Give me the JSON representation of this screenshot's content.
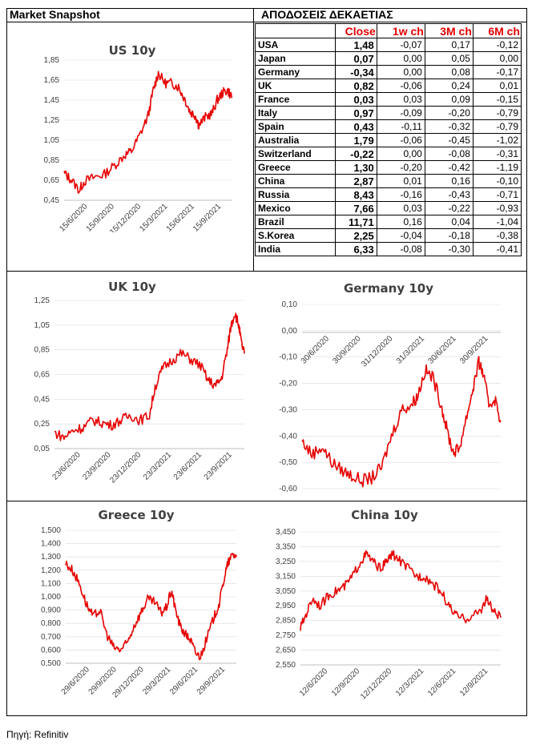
{
  "header": {
    "left": "Market Snapshot",
    "right": "ΑΠΟΔΟΣΕΙΣ ΔΕΚΑΕΤΙΑΣ"
  },
  "table": {
    "columns": [
      "",
      "Close",
      "1w ch",
      "3M ch",
      "6M ch"
    ],
    "rows": [
      [
        "USA",
        "1,48",
        "-0,07",
        "0,17",
        "-0,12"
      ],
      [
        "Japan",
        "0,07",
        "0,00",
        "0,05",
        "0,00"
      ],
      [
        "Germany",
        "-0,34",
        "0,00",
        "0,08",
        "-0,17"
      ],
      [
        "UK",
        "0,82",
        "-0,06",
        "0,24",
        "0,01"
      ],
      [
        "France",
        "0,03",
        "0,03",
        "0,09",
        "-0,15"
      ],
      [
        "Italy",
        "0,97",
        "-0,09",
        "-0,20",
        "-0,79"
      ],
      [
        "Spain",
        "0,43",
        "-0,11",
        "-0,32",
        "-0,79"
      ],
      [
        "Australia",
        "1,79",
        "-0,06",
        "-0,45",
        "-1,02"
      ],
      [
        "Switzerland",
        "-0,22",
        "0,00",
        "-0,08",
        "-0,31"
      ],
      [
        "Greece",
        "1,30",
        "-0,20",
        "-0,42",
        "-1,19"
      ],
      [
        "China",
        "2,87",
        "0,01",
        "0,16",
        "-0,10"
      ],
      [
        "Russia",
        "8,43",
        "-0,16",
        "-0,43",
        "-0,71"
      ],
      [
        "Mexico",
        "7,66",
        "0,03",
        "-0,22",
        "-0,93"
      ],
      [
        "Brazil",
        "11,71",
        "0,16",
        "0,04",
        "-1,04"
      ],
      [
        "S.Korea",
        "2,25",
        "-0,04",
        "-0,18",
        "-0,38"
      ],
      [
        "India",
        "6,33",
        "-0,08",
        "-0,30",
        "-0,41"
      ]
    ]
  },
  "source": "Πηγή: Refinitiv",
  "colors": {
    "line": "#e60000",
    "header_red": "#e00000",
    "text": "#404040"
  },
  "chart_data": [
    {
      "id": "us",
      "type": "line",
      "title": "US 10y",
      "ylim": [
        0.45,
        1.85
      ],
      "yticks": [
        "0,45",
        "0,65",
        "0,85",
        "1,05",
        "1,25",
        "1,45",
        "1,65",
        "1,85"
      ],
      "xticks": [
        "15/6/2020",
        "15/9/2020",
        "15/12/2020",
        "15/3/2021",
        "15/6/2021",
        "15/9/2021"
      ],
      "series": [
        {
          "values": [
            [
              0,
              0.72
            ],
            [
              0.04,
              0.66
            ],
            [
              0.09,
              0.55
            ],
            [
              0.12,
              0.64
            ],
            [
              0.18,
              0.68
            ],
            [
              0.24,
              0.71
            ],
            [
              0.3,
              0.8
            ],
            [
              0.36,
              0.9
            ],
            [
              0.4,
              0.94
            ],
            [
              0.45,
              1.1
            ],
            [
              0.5,
              1.3
            ],
            [
              0.53,
              1.55
            ],
            [
              0.56,
              1.72
            ],
            [
              0.6,
              1.62
            ],
            [
              0.64,
              1.62
            ],
            [
              0.68,
              1.58
            ],
            [
              0.72,
              1.45
            ],
            [
              0.75,
              1.33
            ],
            [
              0.78,
              1.3
            ],
            [
              0.8,
              1.2
            ],
            [
              0.84,
              1.28
            ],
            [
              0.88,
              1.32
            ],
            [
              0.91,
              1.45
            ],
            [
              0.94,
              1.52
            ],
            [
              0.97,
              1.55
            ],
            [
              1.0,
              1.48
            ]
          ]
        }
      ]
    },
    {
      "id": "uk",
      "type": "line",
      "title": "UK 10y",
      "ylim": [
        0.05,
        1.25
      ],
      "yticks": [
        "0,05",
        "0,25",
        "0,45",
        "0,65",
        "0,85",
        "1,05",
        "1,25"
      ],
      "xticks": [
        "23/6/2020",
        "23/9/2020",
        "23/12/2020",
        "23/3/2021",
        "23/6/2021",
        "23/9/2021"
      ],
      "series": [
        {
          "values": [
            [
              0,
              0.18
            ],
            [
              0.05,
              0.14
            ],
            [
              0.1,
              0.2
            ],
            [
              0.15,
              0.22
            ],
            [
              0.2,
              0.28
            ],
            [
              0.25,
              0.26
            ],
            [
              0.3,
              0.24
            ],
            [
              0.35,
              0.28
            ],
            [
              0.4,
              0.32
            ],
            [
              0.45,
              0.28
            ],
            [
              0.5,
              0.32
            ],
            [
              0.53,
              0.55
            ],
            [
              0.57,
              0.7
            ],
            [
              0.62,
              0.77
            ],
            [
              0.67,
              0.82
            ],
            [
              0.72,
              0.77
            ],
            [
              0.77,
              0.72
            ],
            [
              0.81,
              0.6
            ],
            [
              0.85,
              0.56
            ],
            [
              0.88,
              0.62
            ],
            [
              0.91,
              0.85
            ],
            [
              0.93,
              1.05
            ],
            [
              0.95,
              1.15
            ],
            [
              0.97,
              1.05
            ],
            [
              0.985,
              0.9
            ],
            [
              1.0,
              0.82
            ]
          ]
        }
      ]
    },
    {
      "id": "de",
      "type": "line",
      "title": "Germany 10y",
      "ylim": [
        -0.6,
        0.1
      ],
      "yticks": [
        "-0,60",
        "-0,50",
        "-0,40",
        "-0,30",
        "-0,20",
        "-0,10",
        "0,00",
        "0,10"
      ],
      "xticks": [
        "30/6/2020",
        "30/9/2020",
        "31/12/2020",
        "31/3/2021",
        "30/6/2021",
        "30/9/2021"
      ],
      "series": [
        {
          "values": [
            [
              0,
              -0.42
            ],
            [
              0.05,
              -0.47
            ],
            [
              0.1,
              -0.44
            ],
            [
              0.15,
              -0.5
            ],
            [
              0.2,
              -0.53
            ],
            [
              0.25,
              -0.55
            ],
            [
              0.3,
              -0.57
            ],
            [
              0.35,
              -0.56
            ],
            [
              0.4,
              -0.52
            ],
            [
              0.45,
              -0.4
            ],
            [
              0.5,
              -0.3
            ],
            [
              0.55,
              -0.28
            ],
            [
              0.58,
              -0.25
            ],
            [
              0.62,
              -0.15
            ],
            [
              0.66,
              -0.18
            ],
            [
              0.7,
              -0.28
            ],
            [
              0.73,
              -0.38
            ],
            [
              0.76,
              -0.46
            ],
            [
              0.79,
              -0.45
            ],
            [
              0.83,
              -0.32
            ],
            [
              0.86,
              -0.22
            ],
            [
              0.89,
              -0.12
            ],
            [
              0.91,
              -0.16
            ],
            [
              0.94,
              -0.28
            ],
            [
              0.97,
              -0.26
            ],
            [
              1.0,
              -0.34
            ]
          ]
        }
      ]
    },
    {
      "id": "gr",
      "type": "line",
      "title": "Greece 10y",
      "ylim": [
        0.5,
        1.5
      ],
      "yticks": [
        "0,500",
        "0,600",
        "0,700",
        "0,800",
        "0,900",
        "1,000",
        "1,100",
        "1,200",
        "1,300",
        "1,400",
        "1,500"
      ],
      "xticks": [
        "29/6/2020",
        "29/9/2020",
        "29/12/2020",
        "29/3/2021",
        "29/6/2021",
        "29/9/2021"
      ],
      "series": [
        {
          "values": [
            [
              0,
              1.25
            ],
            [
              0.04,
              1.2
            ],
            [
              0.08,
              1.1
            ],
            [
              0.12,
              0.95
            ],
            [
              0.16,
              0.85
            ],
            [
              0.2,
              0.9
            ],
            [
              0.24,
              0.72
            ],
            [
              0.28,
              0.62
            ],
            [
              0.32,
              0.6
            ],
            [
              0.36,
              0.65
            ],
            [
              0.4,
              0.78
            ],
            [
              0.44,
              0.88
            ],
            [
              0.48,
              0.98
            ],
            [
              0.52,
              0.96
            ],
            [
              0.56,
              0.88
            ],
            [
              0.59,
              0.92
            ],
            [
              0.62,
              1.05
            ],
            [
              0.64,
              0.92
            ],
            [
              0.67,
              0.78
            ],
            [
              0.7,
              0.72
            ],
            [
              0.73,
              0.68
            ],
            [
              0.76,
              0.58
            ],
            [
              0.79,
              0.55
            ],
            [
              0.83,
              0.7
            ],
            [
              0.87,
              0.85
            ],
            [
              0.9,
              0.95
            ],
            [
              0.93,
              1.15
            ],
            [
              0.95,
              1.25
            ],
            [
              0.98,
              1.32
            ],
            [
              1.0,
              1.3
            ]
          ]
        }
      ]
    },
    {
      "id": "cn",
      "type": "line",
      "title": "China 10y",
      "ylim": [
        2.55,
        3.45
      ],
      "yticks": [
        "2,550",
        "2,650",
        "2,750",
        "2,850",
        "2,950",
        "3,050",
        "3,150",
        "3,250",
        "3,350",
        "3,450"
      ],
      "xticks": [
        "12/6/2020",
        "12/9/2020",
        "12/12/2020",
        "12/3/2021",
        "12/6/2021",
        "12/9/2021"
      ],
      "series": [
        {
          "values": [
            [
              0,
              2.8
            ],
            [
              0.03,
              2.9
            ],
            [
              0.06,
              3.0
            ],
            [
              0.1,
              2.95
            ],
            [
              0.14,
              3.02
            ],
            [
              0.18,
              3.05
            ],
            [
              0.22,
              3.08
            ],
            [
              0.26,
              3.15
            ],
            [
              0.3,
              3.25
            ],
            [
              0.33,
              3.3
            ],
            [
              0.36,
              3.25
            ],
            [
              0.4,
              3.2
            ],
            [
              0.43,
              3.25
            ],
            [
              0.46,
              3.3
            ],
            [
              0.5,
              3.25
            ],
            [
              0.54,
              3.2
            ],
            [
              0.58,
              3.15
            ],
            [
              0.62,
              3.15
            ],
            [
              0.66,
              3.1
            ],
            [
              0.7,
              3.05
            ],
            [
              0.74,
              2.95
            ],
            [
              0.78,
              2.88
            ],
            [
              0.82,
              2.86
            ],
            [
              0.86,
              2.88
            ],
            [
              0.9,
              2.92
            ],
            [
              0.93,
              3.0
            ],
            [
              0.96,
              2.92
            ],
            [
              1.0,
              2.87
            ]
          ]
        }
      ]
    }
  ]
}
